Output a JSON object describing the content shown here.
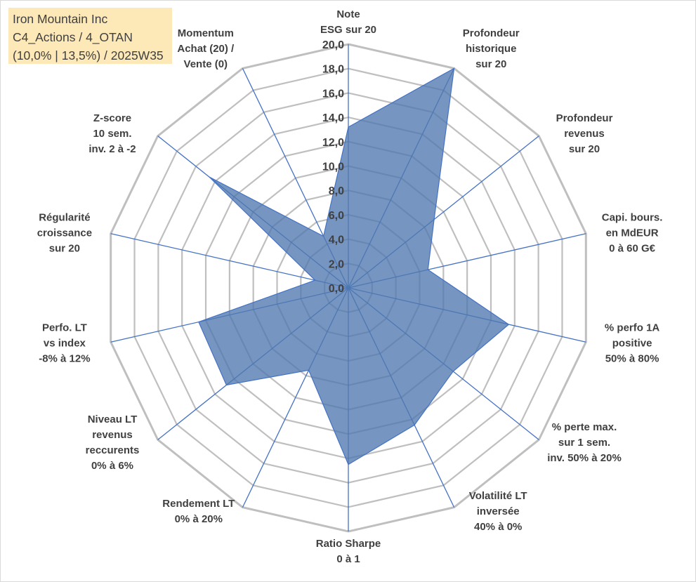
{
  "info_box": {
    "line1": "Iron Mountain Inc",
    "line2": "C4_Actions / 4_OTAN",
    "line3": "(10,0% | 13,5%) / 2025W35"
  },
  "chart_data": {
    "type": "radar",
    "title": "",
    "rmin": 0,
    "rmax": 20,
    "tick_step": 2,
    "tick_labels": [
      "0,0",
      "2,0",
      "4,0",
      "6,0",
      "8,0",
      "10,0",
      "12,0",
      "14,0",
      "16,0",
      "18,0",
      "20,0"
    ],
    "grid": true,
    "colors": {
      "fill": "#4f79b0",
      "fill_opacity": 0.78,
      "stroke": "#4472c4",
      "spoke": "#4472c4",
      "grid": "#bfbfbf",
      "text": "#404040",
      "info_bg": "#fde9b8"
    },
    "axes": [
      {
        "label": [
          "Note",
          "ESG sur 20"
        ],
        "value": 13.2
      },
      {
        "label": [
          "Profondeur",
          "historique",
          "sur 20"
        ],
        "value": 20.0
      },
      {
        "label": [
          "Profondeur",
          "revenus",
          "sur 20"
        ],
        "value": 9.0
      },
      {
        "label": [
          "Capi. bours.",
          "en MdEUR",
          "0 à 60 G€"
        ],
        "value": 6.7
      },
      {
        "label": [
          "% perfo 1A",
          "positive",
          "50% à 80%"
        ],
        "value": 13.5
      },
      {
        "label": [
          "% perte max.",
          "sur 1 sem.",
          "inv. 50% à 20%"
        ],
        "value": 11.0
      },
      {
        "label": [
          "Volatilité LT",
          "inversée",
          "40% à 0%"
        ],
        "value": 12.5
      },
      {
        "label": [
          "Ratio Sharpe",
          "0 à 1"
        ],
        "value": 14.5
      },
      {
        "label": [
          "Rendement LT",
          "0% à 20%"
        ],
        "value": 7.5
      },
      {
        "label": [
          "Niveau LT",
          "revenus",
          "reccurents",
          "0% à 6%"
        ],
        "value": 12.8
      },
      {
        "label": [
          "Perfo. LT",
          "vs index",
          "-8% à 12%"
        ],
        "value": 12.6
      },
      {
        "label": [
          "Régularité",
          "croissance",
          "sur 20"
        ],
        "value": 2.8
      },
      {
        "label": [
          "Z-score",
          "10 sem.",
          "inv. 2 à -2"
        ],
        "value": 14.6
      },
      {
        "label": [
          "Momentum",
          "Achat (20) /",
          "Vente (0)"
        ],
        "value": 4.7
      }
    ]
  }
}
